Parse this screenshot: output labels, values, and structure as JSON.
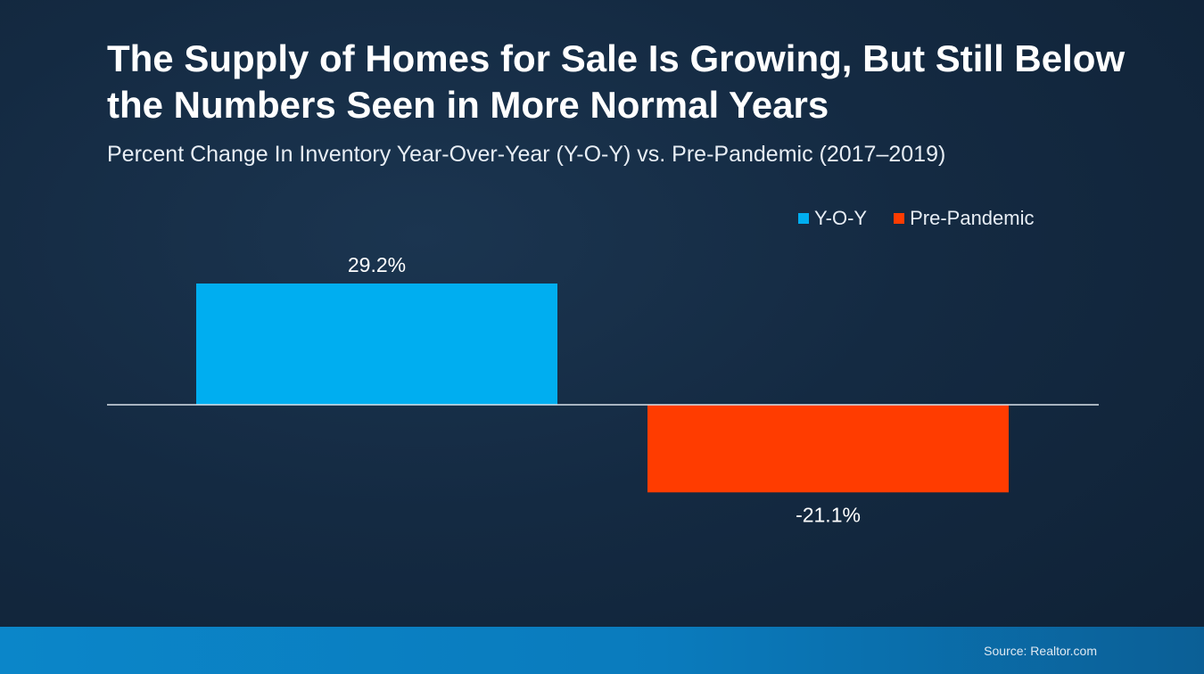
{
  "colors": {
    "yoy": "#00aef0",
    "pre_pandemic": "#ff3c00",
    "baseline": "#d9e2ea",
    "label": "#ffffff"
  },
  "legend": [
    {
      "name": "Y-O-Y",
      "color": "#00aef0"
    },
    {
      "name": "Pre-Pandemic",
      "color": "#ff3c00"
    }
  ],
  "chart_data": {
    "type": "bar",
    "title": "The Supply of Homes for Sale Is Growing, But Still Below the Numbers Seen in More Normal Years",
    "subtitle": "Percent Change In Inventory Year-Over-Year (Y-O-Y) vs. Pre-Pandemic (2017–2019)",
    "categories": [
      "Y-O-Y",
      "Pre-Pandemic"
    ],
    "series": [
      {
        "name": "Y-O-Y",
        "values": [
          29.2,
          null
        ]
      },
      {
        "name": "Pre-Pandemic",
        "values": [
          null,
          -21.1
        ]
      }
    ],
    "data_labels": [
      "29.2%",
      "-21.1%"
    ],
    "ylim": [
      -21.1,
      29.2
    ],
    "grid": false,
    "legend_position": "top-right",
    "xlabel": "",
    "ylabel": ""
  },
  "footer": {
    "source": "Source: Realtor.com"
  }
}
